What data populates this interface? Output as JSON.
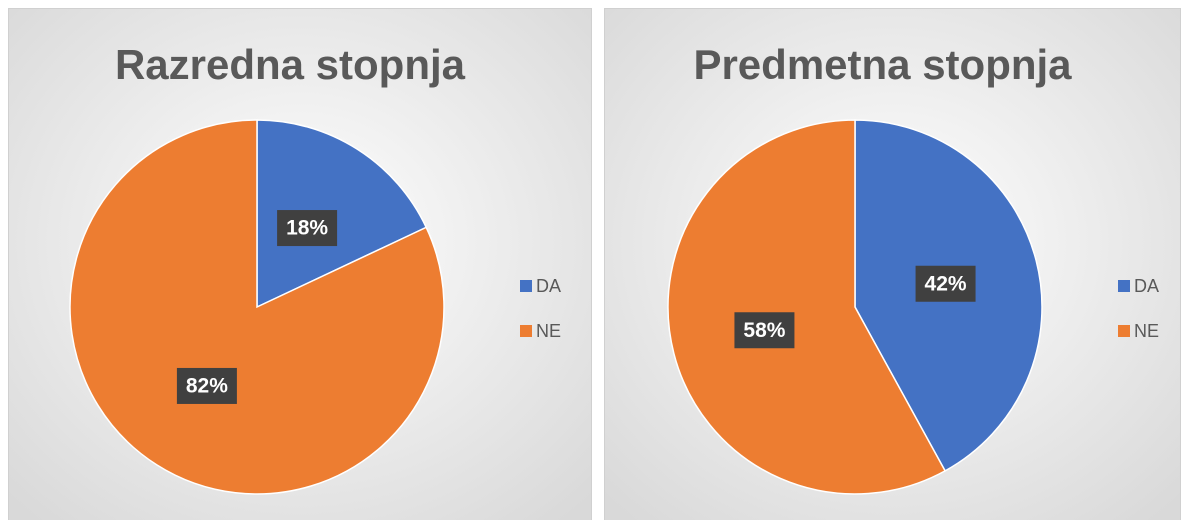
{
  "chart_data": [
    {
      "type": "pie",
      "title": "Razredna stopnja",
      "categories": [
        "DA",
        "NE"
      ],
      "values": [
        18,
        82
      ],
      "value_labels": [
        "18%",
        "82%"
      ],
      "colors": [
        "#4472c4",
        "#ed7d31"
      ]
    },
    {
      "type": "pie",
      "title": "Predmetna stopnja",
      "categories": [
        "DA",
        "NE"
      ],
      "values": [
        42,
        58
      ],
      "value_labels": [
        "42%",
        "58%"
      ],
      "colors": [
        "#4472c4",
        "#ed7d31"
      ]
    }
  ]
}
